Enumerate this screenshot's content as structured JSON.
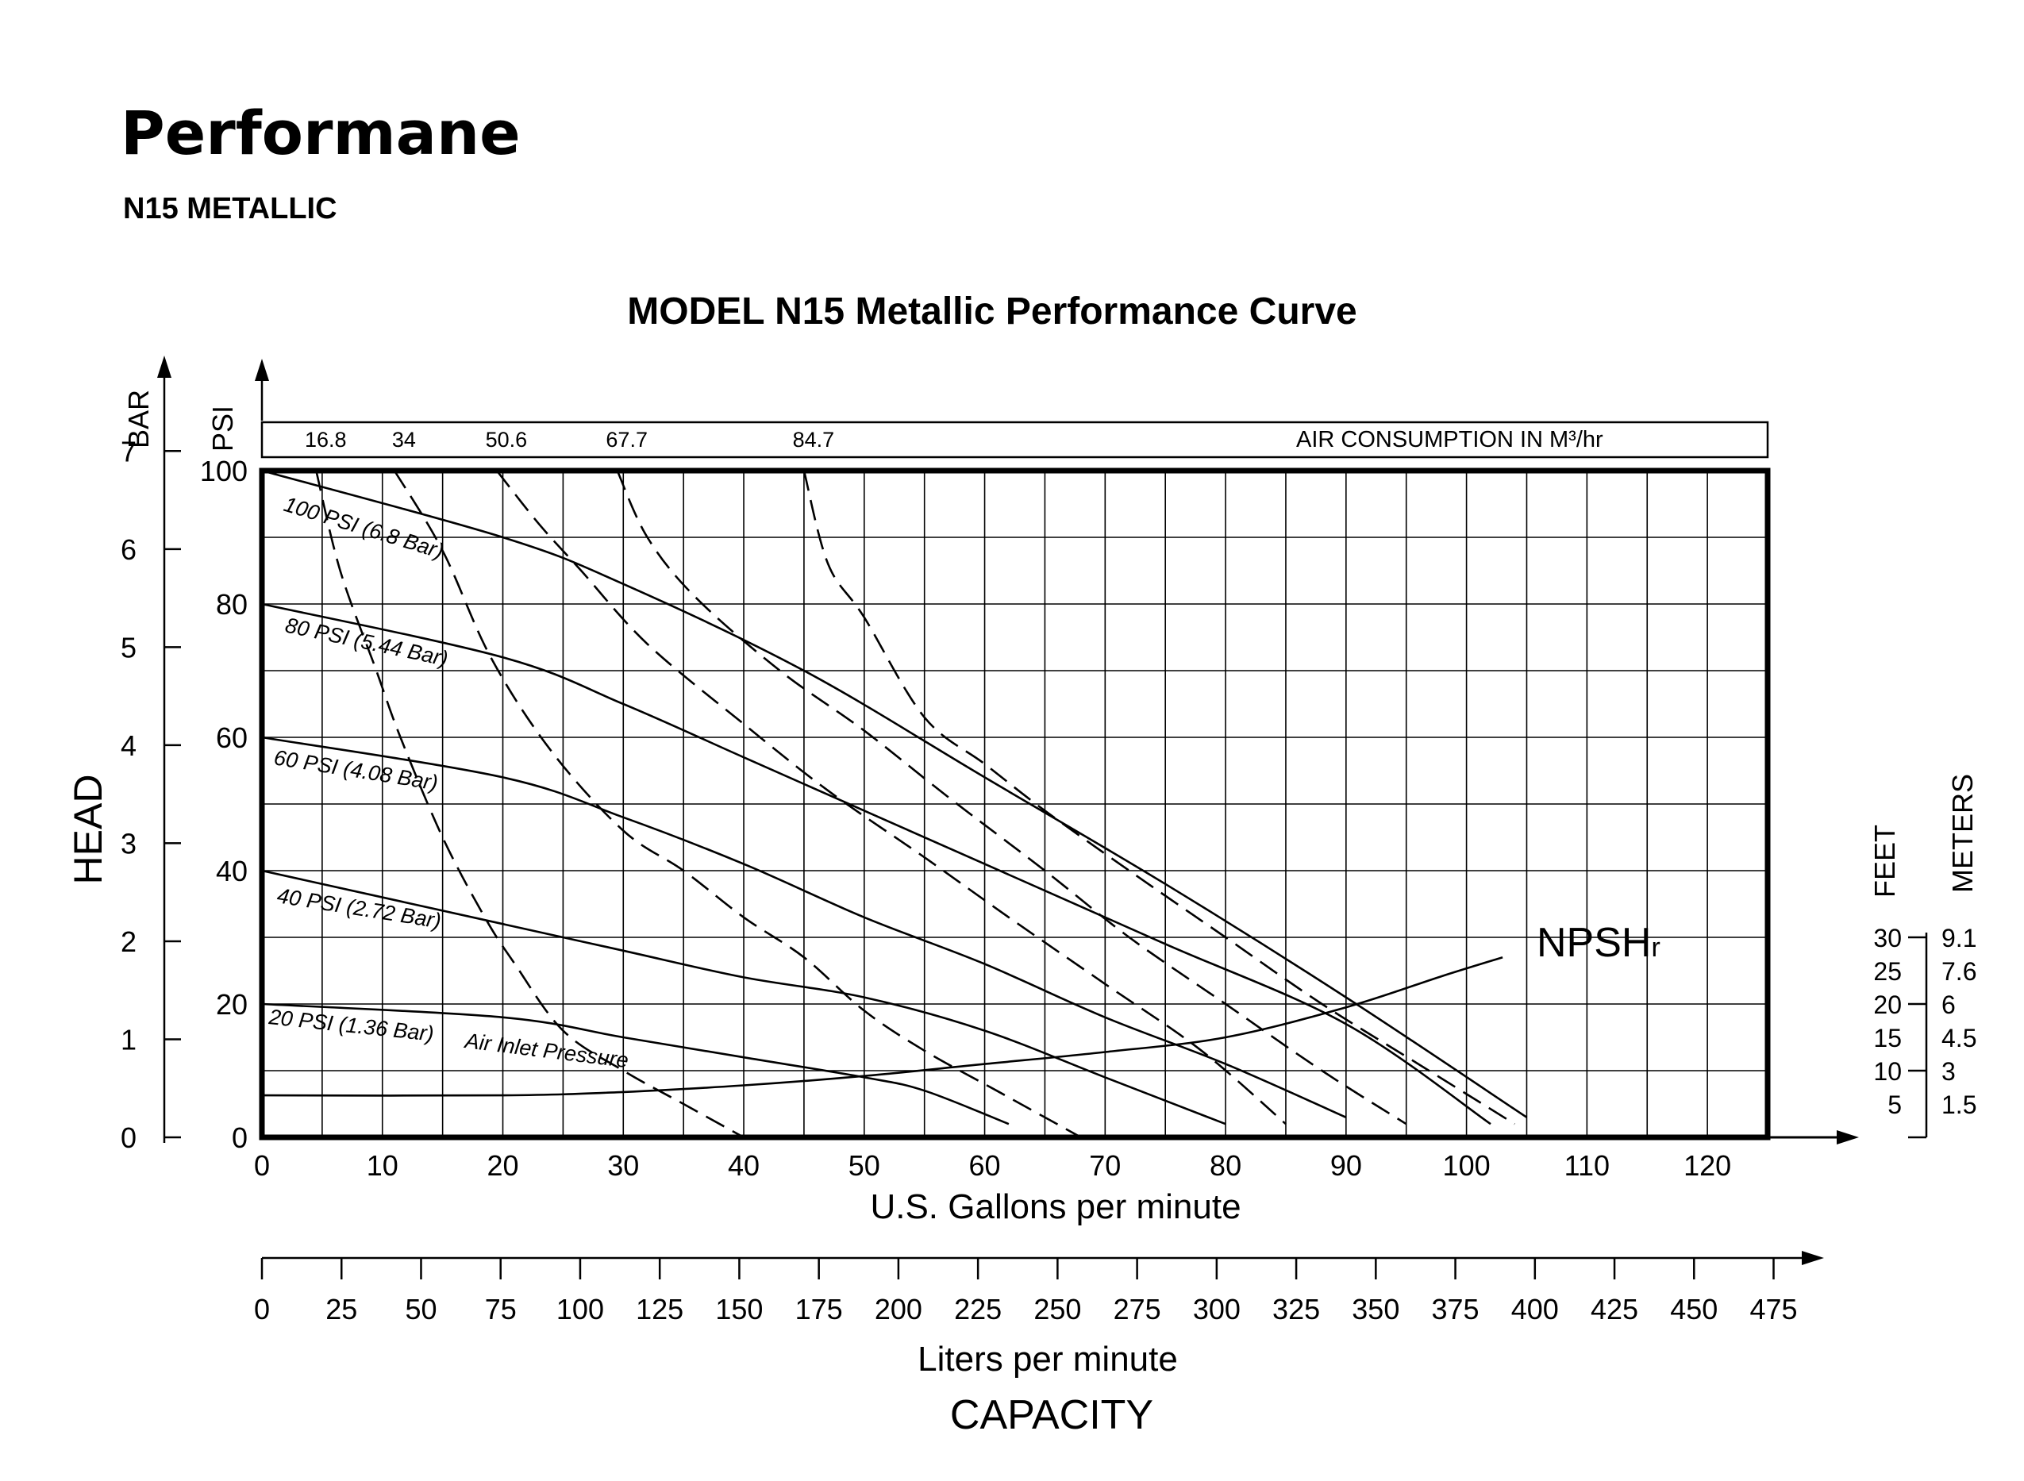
{
  "page": {
    "title": "Performane",
    "subtitle": "N15 METALLIC"
  },
  "chart_data": {
    "type": "line",
    "title": "MODEL N15 Metallic Performance Curve",
    "xlabel": "U.S. Gallons per minute",
    "x2label": "Liters per minute",
    "capacity_label": "CAPACITY",
    "ylabel_head": "HEAD",
    "ylabel_bar": "BAR",
    "ylabel_psi": "PSI",
    "ylabel_feet": "FEET",
    "ylabel_meters": "METERS",
    "xlim": [
      0,
      125
    ],
    "ylim": [
      0,
      100
    ],
    "x_ticks": [
      "0",
      "10",
      "20",
      "30",
      "40",
      "50",
      "60",
      "70",
      "80",
      "90",
      "100",
      "110",
      "120"
    ],
    "psi_ticks": [
      "0",
      "20",
      "40",
      "60",
      "80",
      "100"
    ],
    "bar_ticks": [
      "0",
      "1",
      "2",
      "3",
      "4",
      "5",
      "6",
      "7"
    ],
    "lpm_ticks": [
      "0",
      "25",
      "50",
      "75",
      "100",
      "125",
      "150",
      "175",
      "200",
      "225",
      "250",
      "275",
      "300",
      "325",
      "350",
      "375",
      "400",
      "425",
      "450",
      "475"
    ],
    "npsh_feet": [
      "30",
      "25",
      "20",
      "15",
      "10",
      "5"
    ],
    "npsh_meters": [
      "9.1",
      "7.6",
      "6",
      "4.5",
      "3",
      "1.5"
    ],
    "air_consumption_label": "AIR CONSUMPTION IN M³/hr",
    "air_consumption_ticks": [
      "16.8",
      "34",
      "50.6",
      "67.7",
      "84.7"
    ],
    "grid": true,
    "series": [
      {
        "name": "100 PSI (6.8 Bar)",
        "style": "solid",
        "points": [
          [
            0,
            100
          ],
          [
            20,
            90
          ],
          [
            30,
            83
          ],
          [
            45,
            70
          ],
          [
            60,
            54
          ],
          [
            75,
            38
          ],
          [
            90,
            21
          ],
          [
            105,
            3
          ]
        ]
      },
      {
        "name": "80 PSI (5.44 Bar)",
        "style": "solid",
        "points": [
          [
            0,
            80
          ],
          [
            20,
            72
          ],
          [
            30,
            65
          ],
          [
            40,
            57
          ],
          [
            50,
            49
          ],
          [
            60,
            41
          ],
          [
            75,
            29
          ],
          [
            90,
            17
          ],
          [
            102,
            2
          ]
        ]
      },
      {
        "name": "60 PSI (4.08 Bar)",
        "style": "solid",
        "points": [
          [
            0,
            60
          ],
          [
            20,
            54
          ],
          [
            30,
            48
          ],
          [
            40,
            41
          ],
          [
            50,
            33
          ],
          [
            60,
            26
          ],
          [
            70,
            18
          ],
          [
            80,
            11
          ],
          [
            90,
            3
          ]
        ]
      },
      {
        "name": "40 PSI (2.72 Bar)",
        "style": "solid",
        "points": [
          [
            0,
            40
          ],
          [
            20,
            32
          ],
          [
            30,
            28
          ],
          [
            40,
            24
          ],
          [
            50,
            21
          ],
          [
            60,
            16
          ],
          [
            70,
            9
          ],
          [
            80,
            2
          ]
        ]
      },
      {
        "name": "20 PSI (1.36 Bar)",
        "style": "solid",
        "points": [
          [
            0,
            20
          ],
          [
            20,
            18
          ],
          [
            30,
            15
          ],
          [
            40,
            12
          ],
          [
            50,
            9
          ],
          [
            55,
            7
          ],
          [
            62,
            2
          ]
        ]
      },
      {
        "name": "16.8",
        "style": "dashed",
        "points": [
          [
            4.5,
            100
          ],
          [
            6.5,
            85
          ],
          [
            9.5,
            70
          ],
          [
            11.5,
            60
          ],
          [
            15,
            45
          ],
          [
            18.5,
            33
          ],
          [
            21,
            26
          ],
          [
            25,
            16
          ],
          [
            30,
            10
          ],
          [
            35,
            5
          ],
          [
            40,
            0
          ]
        ]
      },
      {
        "name": "34",
        "style": "dashed",
        "points": [
          [
            11,
            100
          ],
          [
            15,
            88
          ],
          [
            19,
            72
          ],
          [
            24,
            58
          ],
          [
            30,
            46
          ],
          [
            35,
            40
          ],
          [
            40,
            33
          ],
          [
            45,
            27
          ],
          [
            50,
            19
          ],
          [
            55,
            13
          ],
          [
            61,
            7
          ],
          [
            68,
            0
          ]
        ]
      },
      {
        "name": "50.6",
        "style": "dashed",
        "points": [
          [
            19.5,
            100
          ],
          [
            23,
            92
          ],
          [
            26.5,
            85
          ],
          [
            32,
            74
          ],
          [
            40,
            62
          ],
          [
            47,
            52
          ],
          [
            55,
            42
          ],
          [
            62,
            33
          ],
          [
            70,
            23
          ],
          [
            78,
            13
          ],
          [
            85,
            2
          ]
        ]
      },
      {
        "name": "67.7",
        "style": "dashed",
        "points": [
          [
            29.5,
            100
          ],
          [
            32,
            90
          ],
          [
            36,
            81
          ],
          [
            43,
            70
          ],
          [
            50,
            61
          ],
          [
            57,
            51
          ],
          [
            65,
            40
          ],
          [
            72,
            30
          ],
          [
            80,
            20
          ],
          [
            88,
            10
          ],
          [
            95,
            2
          ]
        ]
      },
      {
        "name": "84.7",
        "style": "dashed",
        "points": [
          [
            45,
            100
          ],
          [
            47,
            86
          ],
          [
            50,
            78
          ],
          [
            55,
            63
          ],
          [
            60,
            56
          ],
          [
            65,
            49
          ],
          [
            72,
            40
          ],
          [
            80,
            30
          ],
          [
            88,
            20
          ],
          [
            96,
            11
          ],
          [
            104,
            2
          ]
        ]
      },
      {
        "name": "NPSHr",
        "style": "solid",
        "points": [
          [
            0,
            6.3
          ],
          [
            20,
            6.3
          ],
          [
            30,
            6.8
          ],
          [
            40,
            7.8
          ],
          [
            50,
            9.2
          ],
          [
            60,
            11
          ],
          [
            70,
            12.8
          ],
          [
            80,
            15
          ],
          [
            90,
            19.5
          ],
          [
            98,
            24.2
          ],
          [
            103,
            27
          ]
        ]
      }
    ],
    "annotations": {
      "curve_100": "100 PSI (6.8 Bar)",
      "curve_80": "80 PSI (5.44 Bar)",
      "curve_60": "60 PSI (4.08 Bar)",
      "curve_40": "40 PSI (2.72 Bar)",
      "curve_20": "20 PSI (1.36 Bar)",
      "air_inlet": "Air Inlet Pressure",
      "npsh": "NPSH",
      "npsh_sub": "r"
    }
  }
}
